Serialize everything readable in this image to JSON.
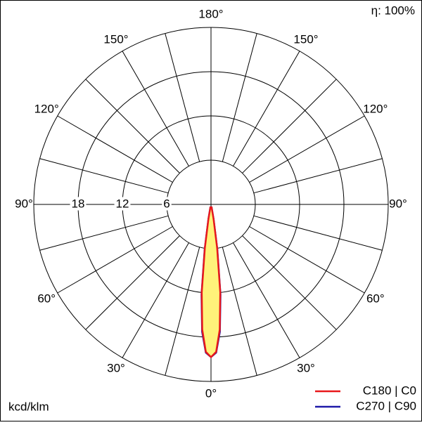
{
  "chart_data": {
    "type": "polar",
    "efficiency_label": "η: 100%",
    "unit_label": "kcd/klm",
    "rlim": [
      0,
      24
    ],
    "rticks": [
      6,
      12,
      18
    ],
    "angle_ticks": [
      {
        "value": 0,
        "label": "0°"
      },
      {
        "value": 30,
        "label": "30°"
      },
      {
        "value": 60,
        "label": "60°"
      },
      {
        "value": 90,
        "label": "90°"
      },
      {
        "value": 120,
        "label": "120°"
      },
      {
        "value": 150,
        "label": "150°"
      },
      {
        "value": 180,
        "label": "180°"
      }
    ],
    "x": [
      -12,
      -10,
      -8,
      -6,
      -4,
      -2,
      0,
      2,
      4,
      6,
      8,
      10,
      12
    ],
    "series": [
      {
        "name": "C180 | C0",
        "color": "#e8181b",
        "fill": "#fff27a",
        "values": [
          0.4,
          2,
          6,
          12,
          17,
          20,
          20.7,
          20,
          17,
          12,
          6,
          2,
          0.4
        ]
      },
      {
        "name": "C270 | C90",
        "color": "#1f1aa8",
        "values": [
          0.4,
          2,
          6.2,
          12.3,
          17.3,
          20.1,
          20.7,
          20.1,
          17.3,
          12.3,
          6.2,
          2,
          0.4
        ]
      }
    ]
  }
}
